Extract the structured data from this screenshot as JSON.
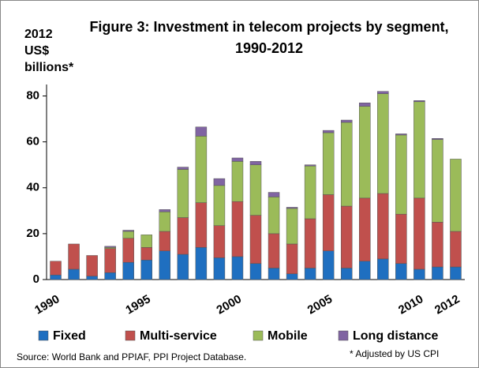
{
  "chart_data": {
    "type": "stacked_bar",
    "title": "Figure 3: Investment in telecom projects by segment, 1990-2012",
    "y_label": "2012 US$ billions*",
    "source": "Source:  World Bank and PPIAF, PPI Project Database.",
    "footnote": "* Adjusted by US CPI",
    "categories": [
      "1990",
      null,
      null,
      null,
      null,
      "1995",
      null,
      null,
      null,
      null,
      "2000",
      null,
      null,
      null,
      null,
      "2005",
      null,
      null,
      null,
      null,
      "2010",
      null,
      "2012"
    ],
    "series": [
      {
        "name": "Fixed",
        "color": "#1f6fc0",
        "values": [
          2,
          4.5,
          1.5,
          3,
          7.5,
          8.5,
          12.5,
          11,
          14,
          9.5,
          10,
          7,
          5,
          2.5,
          5,
          12.5,
          5,
          8,
          9,
          7,
          4.5,
          5.5,
          5.5
        ]
      },
      {
        "name": "Multi-service",
        "color": "#c0504d",
        "values": [
          6,
          11,
          9,
          10.5,
          10.5,
          5.5,
          8.5,
          16,
          19.5,
          14,
          24,
          21,
          15,
          13,
          21.5,
          24.5,
          27,
          27.5,
          28.5,
          21.5,
          31,
          19.5,
          15.5
        ]
      },
      {
        "name": "Mobile",
        "color": "#9bbb59",
        "values": [
          0,
          0,
          0,
          0.5,
          3,
          5.5,
          8.5,
          21,
          29,
          17.5,
          17.5,
          22,
          16,
          15.5,
          23,
          27,
          36.5,
          40,
          43.5,
          34.5,
          42,
          36,
          31.5
        ]
      },
      {
        "name": "Long distance",
        "color": "#8064a2",
        "values": [
          0,
          0,
          0,
          0.5,
          0.5,
          0,
          1,
          1,
          4,
          3,
          1.5,
          1.5,
          2,
          0.5,
          0.5,
          1,
          1,
          1.5,
          1,
          0.5,
          0.5,
          0.5,
          0
        ]
      }
    ],
    "ylim": [
      0,
      85
    ],
    "yticks": [
      0,
      20,
      40,
      60,
      80
    ],
    "grid": false
  }
}
